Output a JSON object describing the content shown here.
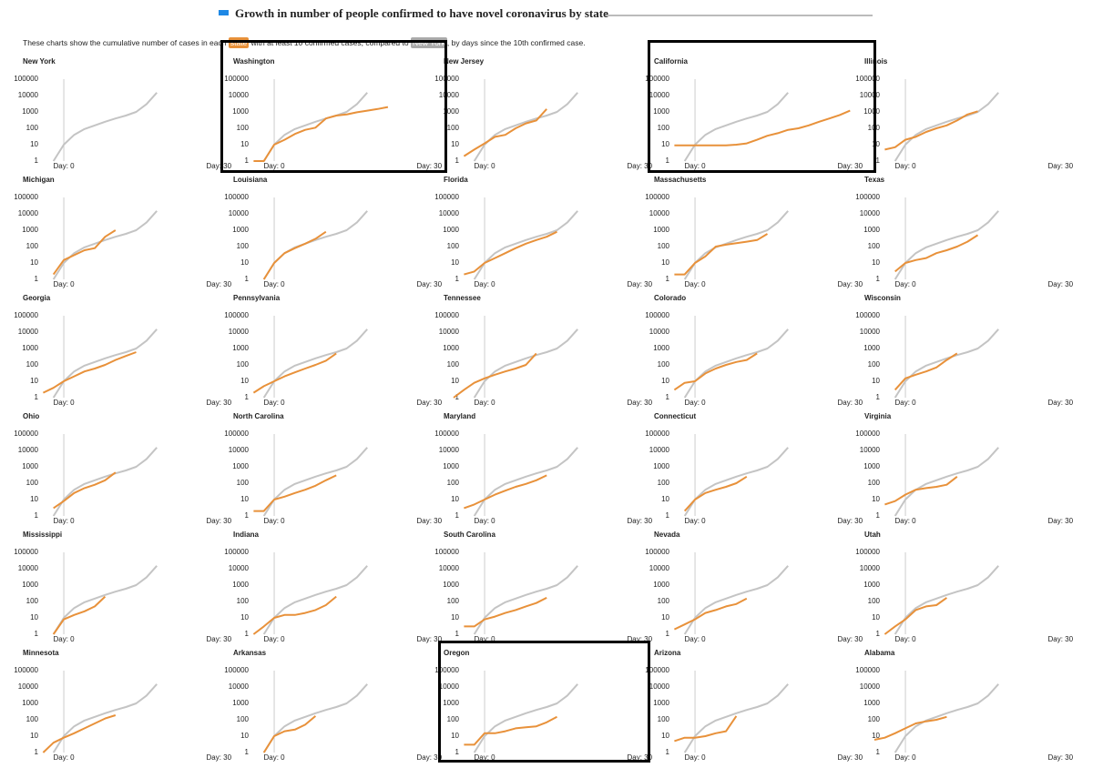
{
  "header": {
    "title": "Growth in number of people confirmed to have novel coronavirus by state",
    "description": {
      "before": "These charts show the cumulative number of cases in each",
      "state_label": "state",
      "middle": "with at least 10 confirmed cases, compared to",
      "new_york_label": "New York",
      "after": ", by days since the 10th confirmed case."
    }
  },
  "axes": {
    "x": [
      -6,
      -4,
      -2,
      0,
      2,
      4,
      6,
      8,
      10,
      12,
      14,
      16,
      18,
      20,
      22,
      24,
      26,
      28,
      30,
      32
    ],
    "xlim": [
      -6,
      34
    ],
    "xticks": [
      {
        "value": 0,
        "label": "Day: 0"
      },
      {
        "value": 30,
        "label": "Day: 30"
      }
    ],
    "ylim": [
      1,
      100000
    ],
    "yticks": [
      1,
      10,
      100,
      1000,
      10000,
      100000
    ],
    "log_y": true
  },
  "baseline": {
    "color": "#c4c4c4",
    "values": [
      null,
      null,
      1,
      10,
      40,
      90,
      150,
      250,
      400,
      600,
      1000,
      3000,
      15000,
      null,
      null,
      null,
      null,
      null,
      null,
      null
    ]
  },
  "chart_data": [
    {
      "type": "line",
      "title": "New York",
      "series": []
    },
    {
      "type": "line",
      "title": "Washington",
      "series": [
        {
          "color": "#e8913a",
          "values": [
            null,
            1,
            1,
            10,
            20,
            45,
            80,
            110,
            400,
            600,
            700,
            950,
            1200,
            1500,
            2000,
            null,
            null,
            null,
            null,
            null
          ]
        }
      ]
    },
    {
      "type": "line",
      "title": "New Jersey",
      "series": [
        {
          "color": "#e8913a",
          "values": [
            null,
            2,
            5,
            12,
            30,
            40,
            100,
            200,
            300,
            1500,
            null,
            null,
            null,
            null,
            null,
            null,
            null,
            null,
            null,
            null
          ]
        }
      ]
    },
    {
      "type": "line",
      "title": "California",
      "series": [
        {
          "color": "#e8913a",
          "values": [
            null,
            9,
            9,
            9,
            9,
            9,
            9,
            10,
            12,
            20,
            35,
            50,
            80,
            100,
            150,
            250,
            400,
            650,
            1200,
            null
          ]
        }
      ]
    },
    {
      "type": "line",
      "title": "Illinois",
      "series": [
        {
          "color": "#e8913a",
          "values": [
            null,
            5,
            7,
            20,
            30,
            60,
            100,
            150,
            300,
            700,
            1100,
            null,
            null,
            null,
            null,
            null,
            null,
            null,
            null,
            null
          ]
        }
      ]
    },
    {
      "type": "line",
      "title": "Michigan",
      "series": [
        {
          "color": "#e8913a",
          "values": [
            null,
            null,
            2,
            15,
            30,
            60,
            80,
            400,
            1000,
            null,
            null,
            null,
            null,
            null,
            null,
            null,
            null,
            null,
            null,
            null
          ]
        }
      ]
    },
    {
      "type": "line",
      "title": "Louisiana",
      "series": [
        {
          "color": "#e8913a",
          "values": [
            null,
            null,
            1,
            10,
            40,
            80,
            150,
            300,
            800,
            null,
            null,
            null,
            null,
            null,
            null,
            null,
            null,
            null,
            null,
            null
          ]
        }
      ]
    },
    {
      "type": "line",
      "title": "Florida",
      "series": [
        {
          "color": "#e8913a",
          "values": [
            null,
            2,
            3,
            10,
            20,
            40,
            80,
            150,
            250,
            400,
            800,
            null,
            null,
            null,
            null,
            null,
            null,
            null,
            null,
            null
          ]
        }
      ]
    },
    {
      "type": "line",
      "title": "Massachusetts",
      "series": [
        {
          "color": "#e8913a",
          "values": [
            null,
            2,
            2,
            10,
            25,
            100,
            130,
            160,
            200,
            250,
            600,
            null,
            null,
            null,
            null,
            null,
            null,
            null,
            null,
            null
          ]
        }
      ]
    },
    {
      "type": "line",
      "title": "Texas",
      "series": [
        {
          "color": "#e8913a",
          "values": [
            null,
            null,
            3,
            10,
            15,
            20,
            40,
            60,
            100,
            200,
            500,
            null,
            null,
            null,
            null,
            null,
            null,
            null,
            null,
            null
          ]
        }
      ]
    },
    {
      "type": "line",
      "title": "Georgia",
      "series": [
        {
          "color": "#e8913a",
          "values": [
            null,
            2,
            4,
            10,
            20,
            40,
            60,
            100,
            200,
            350,
            600,
            null,
            null,
            null,
            null,
            null,
            null,
            null,
            null,
            null
          ]
        }
      ]
    },
    {
      "type": "line",
      "title": "Pennsylvania",
      "series": [
        {
          "color": "#e8913a",
          "values": [
            null,
            2,
            5,
            10,
            20,
            35,
            60,
            100,
            180,
            500,
            null,
            null,
            null,
            null,
            null,
            null,
            null,
            null,
            null,
            null
          ]
        }
      ]
    },
    {
      "type": "line",
      "title": "Tennessee",
      "series": [
        {
          "color": "#e8913a",
          "values": [
            1,
            3,
            8,
            15,
            25,
            40,
            60,
            100,
            500,
            null,
            null,
            null,
            null,
            null,
            null,
            null,
            null,
            null,
            null,
            null
          ]
        }
      ]
    },
    {
      "type": "line",
      "title": "Colorado",
      "series": [
        {
          "color": "#e8913a",
          "values": [
            null,
            3,
            8,
            10,
            30,
            60,
            100,
            150,
            200,
            500,
            null,
            null,
            null,
            null,
            null,
            null,
            null,
            null,
            null,
            null
          ]
        }
      ]
    },
    {
      "type": "line",
      "title": "Wisconsin",
      "series": [
        {
          "color": "#e8913a",
          "values": [
            null,
            null,
            3,
            15,
            25,
            40,
            70,
            200,
            500,
            null,
            null,
            null,
            null,
            null,
            null,
            null,
            null,
            null,
            null,
            null
          ]
        }
      ]
    },
    {
      "type": "line",
      "title": "Ohio",
      "series": [
        {
          "color": "#e8913a",
          "values": [
            null,
            null,
            3,
            8,
            25,
            50,
            80,
            150,
            450,
            null,
            null,
            null,
            null,
            null,
            null,
            null,
            null,
            null,
            null,
            null
          ]
        }
      ]
    },
    {
      "type": "line",
      "title": "North Carolina",
      "series": [
        {
          "color": "#e8913a",
          "values": [
            null,
            2,
            2,
            10,
            15,
            25,
            40,
            70,
            150,
            300,
            null,
            null,
            null,
            null,
            null,
            null,
            null,
            null,
            null,
            null
          ]
        }
      ]
    },
    {
      "type": "line",
      "title": "Maryland",
      "series": [
        {
          "color": "#e8913a",
          "values": [
            null,
            3,
            5,
            10,
            20,
            35,
            60,
            90,
            150,
            300,
            null,
            null,
            null,
            null,
            null,
            null,
            null,
            null,
            null,
            null
          ]
        }
      ]
    },
    {
      "type": "line",
      "title": "Connecticut",
      "series": [
        {
          "color": "#e8913a",
          "values": [
            null,
            null,
            2,
            10,
            25,
            40,
            60,
            100,
            250,
            null,
            null,
            null,
            null,
            null,
            null,
            null,
            null,
            null,
            null,
            null
          ]
        }
      ]
    },
    {
      "type": "line",
      "title": "Virginia",
      "series": [
        {
          "color": "#e8913a",
          "values": [
            null,
            5,
            8,
            20,
            40,
            50,
            60,
            80,
            250,
            null,
            null,
            null,
            null,
            null,
            null,
            null,
            null,
            null,
            null,
            null
          ]
        }
      ]
    },
    {
      "type": "line",
      "title": "Mississippi",
      "series": [
        {
          "color": "#e8913a",
          "values": [
            null,
            null,
            1,
            8,
            15,
            25,
            50,
            200,
            null,
            null,
            null,
            null,
            null,
            null,
            null,
            null,
            null,
            null,
            null,
            null
          ]
        }
      ]
    },
    {
      "type": "line",
      "title": "Indiana",
      "series": [
        {
          "color": "#e8913a",
          "values": [
            null,
            1,
            3,
            10,
            15,
            15,
            20,
            30,
            60,
            200,
            null,
            null,
            null,
            null,
            null,
            null,
            null,
            null,
            null,
            null
          ]
        }
      ]
    },
    {
      "type": "line",
      "title": "South Carolina",
      "series": [
        {
          "color": "#e8913a",
          "values": [
            null,
            3,
            3,
            8,
            12,
            20,
            30,
            50,
            80,
            170,
            null,
            null,
            null,
            null,
            null,
            null,
            null,
            null,
            null,
            null
          ]
        }
      ]
    },
    {
      "type": "line",
      "title": "Nevada",
      "series": [
        {
          "color": "#e8913a",
          "values": [
            null,
            2,
            4,
            8,
            20,
            30,
            50,
            70,
            150,
            null,
            null,
            null,
            null,
            null,
            null,
            null,
            null,
            null,
            null,
            null
          ]
        }
      ]
    },
    {
      "type": "line",
      "title": "Utah",
      "series": [
        {
          "color": "#e8913a",
          "values": [
            null,
            1,
            3,
            8,
            30,
            50,
            60,
            170,
            null,
            null,
            null,
            null,
            null,
            null,
            null,
            null,
            null,
            null,
            null,
            null
          ]
        }
      ]
    },
    {
      "type": "line",
      "title": "Minnesota",
      "series": [
        {
          "color": "#e8913a",
          "values": [
            null,
            1,
            4,
            8,
            15,
            30,
            60,
            120,
            190,
            null,
            null,
            null,
            null,
            null,
            null,
            null,
            null,
            null,
            null,
            null
          ]
        }
      ]
    },
    {
      "type": "line",
      "title": "Arkansas",
      "series": [
        {
          "color": "#e8913a",
          "values": [
            null,
            null,
            1,
            10,
            20,
            25,
            50,
            170,
            null,
            null,
            null,
            null,
            null,
            null,
            null,
            null,
            null,
            null,
            null,
            null
          ]
        }
      ]
    },
    {
      "type": "line",
      "title": "Oregon",
      "series": [
        {
          "color": "#e8913a",
          "values": [
            null,
            3,
            3,
            15,
            15,
            20,
            30,
            35,
            40,
            70,
            150,
            null,
            null,
            null,
            null,
            null,
            null,
            null,
            null,
            null
          ]
        }
      ]
    },
    {
      "type": "line",
      "title": "Arizona",
      "series": [
        {
          "color": "#e8913a",
          "values": [
            null,
            5,
            8,
            8,
            10,
            15,
            20,
            170,
            null,
            null,
            null,
            null,
            null,
            null,
            null,
            null,
            null,
            null,
            null,
            null
          ]
        }
      ]
    },
    {
      "type": "line",
      "title": "Alabama",
      "series": [
        {
          "color": "#e8913a",
          "values": [
            6,
            8,
            15,
            30,
            60,
            80,
            100,
            150,
            null,
            null,
            null,
            null,
            null,
            null,
            null,
            null,
            null,
            null,
            null,
            null
          ]
        }
      ]
    }
  ]
}
